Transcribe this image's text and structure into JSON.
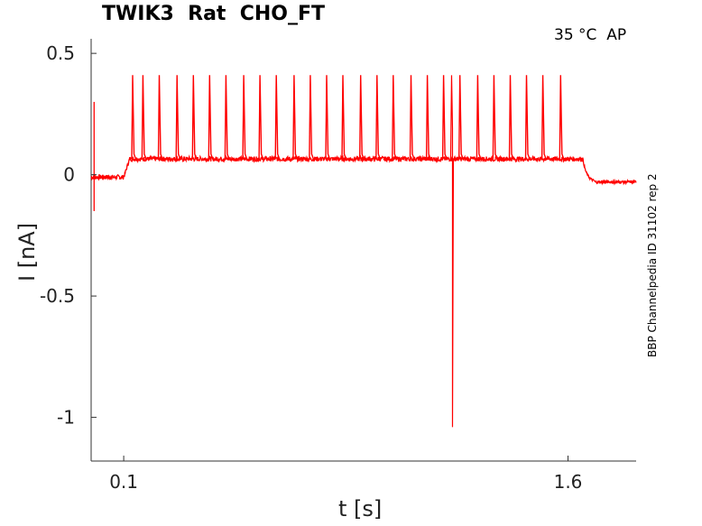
{
  "chart_data": {
    "type": "line",
    "title": "TWIK3  Rat  CHO_FT",
    "condition": "35 °C  AP",
    "side_label": "BBP Channelpedia ID 31102 rep 2",
    "xlabel": "t [s]",
    "ylabel": "I [nA]",
    "xlim": [
      -0.01,
      1.83
    ],
    "ylim": [
      -1.18,
      0.56
    ],
    "xticks": [
      0.1,
      1.6
    ],
    "xtick_labels": [
      "0.1",
      "1.6"
    ],
    "yticks": [
      0.5,
      0,
      -0.5,
      -1
    ],
    "ytick_labels": [
      "0.5",
      "0",
      "-0.5",
      "-1"
    ],
    "grid": false,
    "series": [
      {
        "color": "#ff0000",
        "baseline_before": -0.01,
        "baseline_during": 0.065,
        "baseline_after": -0.03,
        "stim_start": 0.1,
        "stim_end": 1.65,
        "spike_times": [
          0.13,
          0.165,
          0.22,
          0.28,
          0.335,
          0.39,
          0.445,
          0.505,
          0.56,
          0.615,
          0.675,
          0.73,
          0.785,
          0.84,
          0.9,
          0.955,
          1.01,
          1.07,
          1.125,
          1.18,
          1.235,
          1.295,
          1.35,
          1.405,
          1.46,
          1.515,
          1.575
        ],
        "spike_peak": 0.41,
        "artifact_time": 1.21,
        "artifact_min": -1.04,
        "artifact_max": 0.19,
        "onset_transient_min": -0.15,
        "onset_transient_max": 0.3
      }
    ]
  }
}
